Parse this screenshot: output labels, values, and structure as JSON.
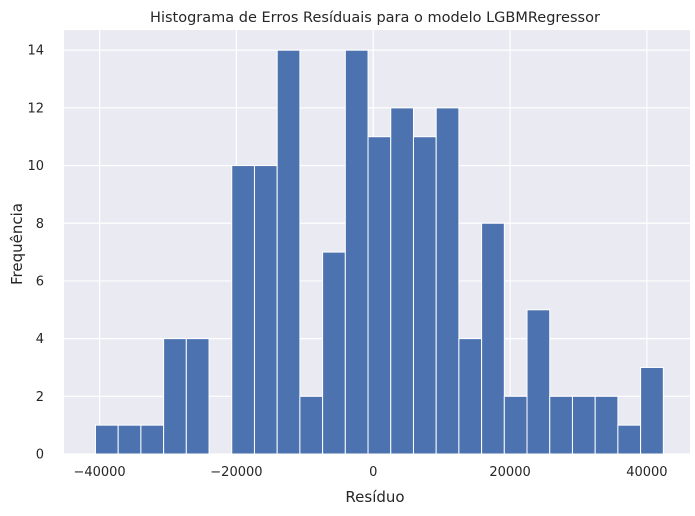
{
  "chart_data": {
    "type": "bar",
    "title": "Histograma de Erros Resíduais para o modelo LGBMRegressor",
    "xlabel": "Resíduo",
    "ylabel": "Frequência",
    "xlim": [
      -45200,
      46300
    ],
    "ylim": [
      0,
      14.7
    ],
    "xticks": [
      -40000,
      -20000,
      0,
      20000,
      40000
    ],
    "xtick_labels": [
      "−40000",
      "−20000",
      "0",
      "20000",
      "40000"
    ],
    "yticks": [
      0,
      2,
      4,
      6,
      8,
      10,
      12,
      14
    ],
    "ytick_labels": [
      "0",
      "2",
      "4",
      "6",
      "8",
      "10",
      "12",
      "14"
    ],
    "grid": true,
    "bin_start": -40600,
    "bin_width": 3320,
    "frequencies": [
      1,
      1,
      1,
      4,
      4,
      0,
      10,
      10,
      14,
      2,
      7,
      14,
      11,
      12,
      11,
      12,
      4,
      8,
      2,
      5,
      2,
      2,
      2,
      1,
      3
    ],
    "bar_color": "#4c72b0",
    "background_color": "#eaeaf2",
    "grid_color": "#ffffff"
  }
}
